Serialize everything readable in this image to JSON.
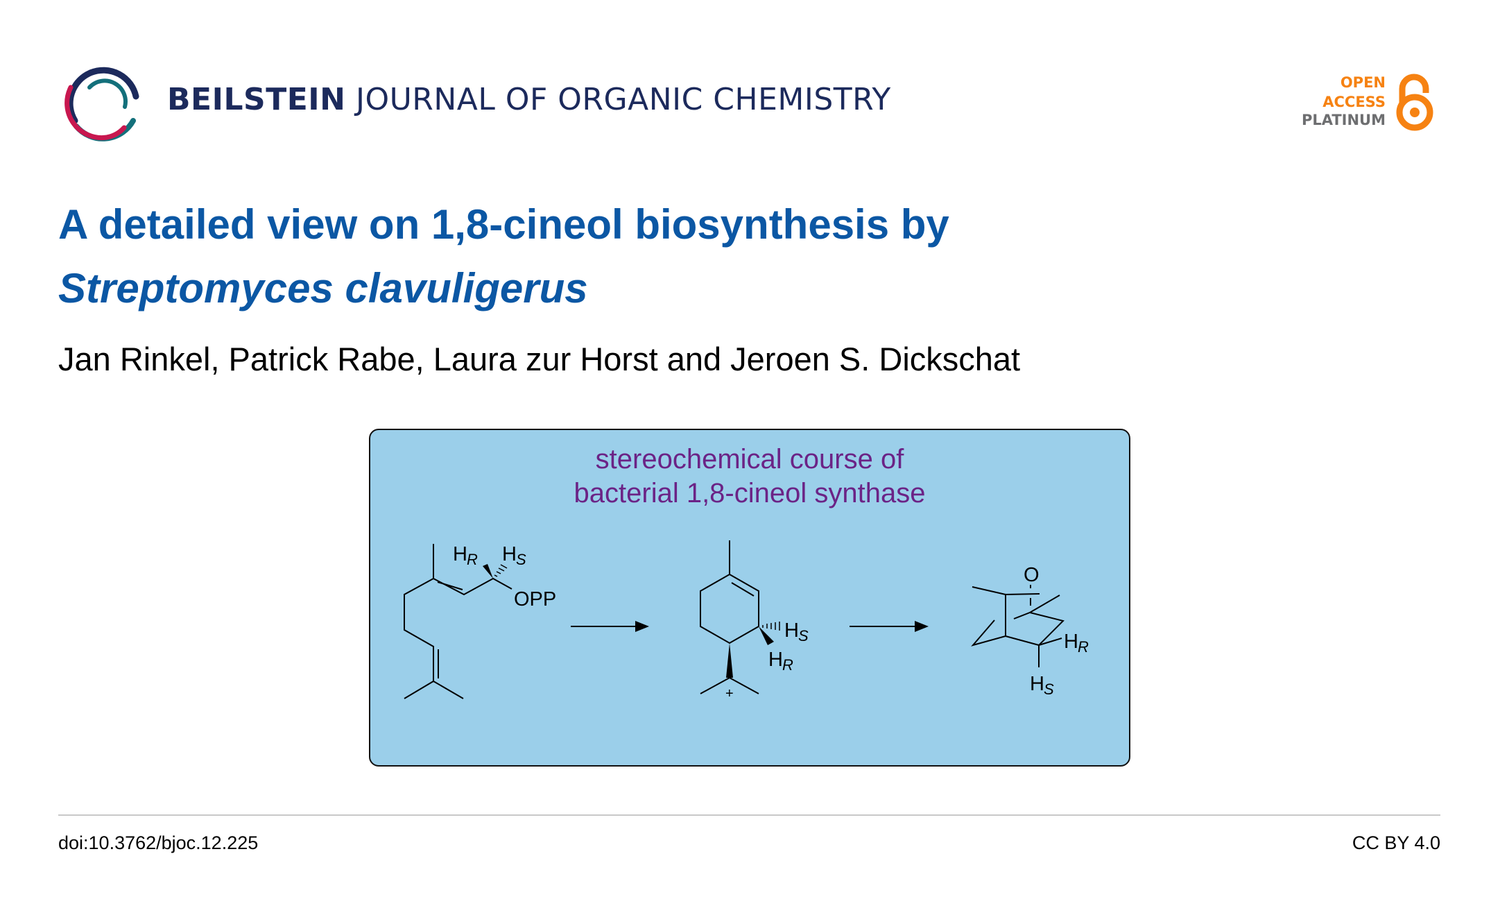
{
  "header": {
    "journal_bold": "BEILSTEIN",
    "journal_rest": "JOURNAL OF ORGANIC CHEMISTRY",
    "open_access": [
      "OPEN",
      "ACCESS",
      "PLATINUM"
    ],
    "logo_colors": {
      "navy": "#1c2a5c",
      "crimson": "#c8174f",
      "teal": "#13707b"
    },
    "oa_colors": {
      "orange": "#f68212",
      "gray": "#6d6e70"
    }
  },
  "article": {
    "title_line1": "A detailed view on 1,8-cineol biosynthesis by",
    "title_line2": "Streptomyces clavuligerus",
    "authors": "Jan Rinkel, Patrick Rabe, Laura zur Horst and Jeroen S. Dickschat"
  },
  "graphical_abstract": {
    "heading_line1": "stereochemical course of",
    "heading_line2": "bacterial 1,8-cineol synthase",
    "background": "#9bcfea",
    "labels": {
      "opp": "OPP",
      "h": "H",
      "r": "R",
      "s": "S",
      "o": "O",
      "plus": "+"
    }
  },
  "footer": {
    "doi": "doi:10.3762/bjoc.12.225",
    "license": "CC BY 4.0"
  }
}
